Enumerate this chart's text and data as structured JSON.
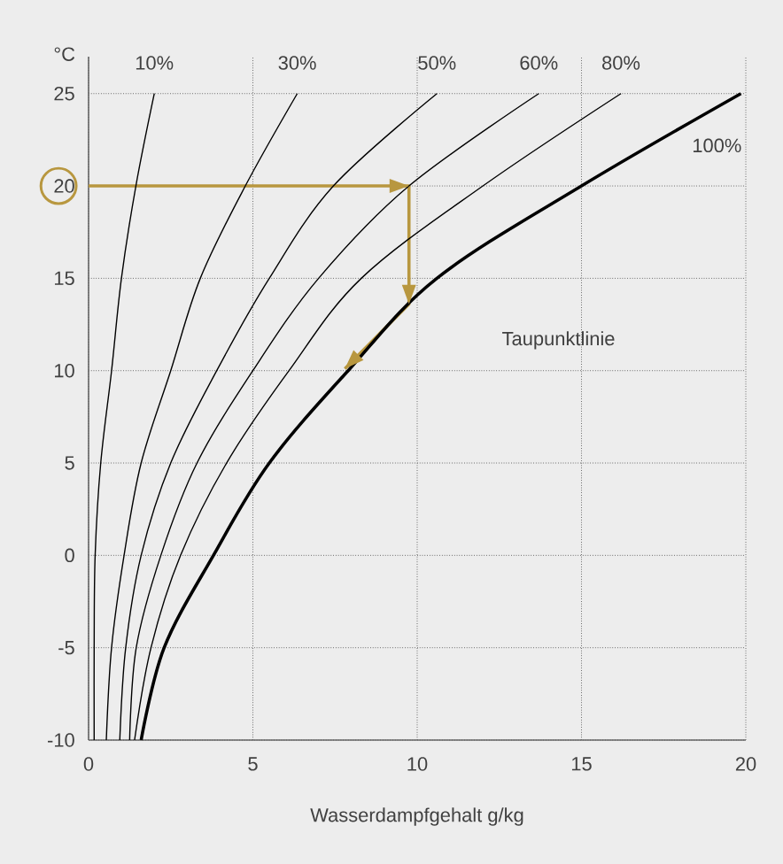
{
  "chart_data": {
    "type": "line",
    "xlabel": "Wasserdampfgehalt g/kg",
    "ylabel": "°C",
    "xlim": [
      0,
      20
    ],
    "ylim": [
      -10,
      27
    ],
    "xticks": [
      0,
      5,
      10,
      15,
      20
    ],
    "yticks": [
      -10,
      -5,
      0,
      5,
      10,
      15,
      20,
      25
    ],
    "grid": true,
    "marker": "none",
    "series": [
      {
        "color": "#b8973f",
        "x": [
          0,
          9.75,
          9.75,
          7.8
        ],
        "values": [
          20,
          20,
          13.6,
          10.1
        ]
      },
      {
        "name": "10%",
        "color": "#000000",
        "x": [
          0.17,
          0.17,
          0.2,
          0.37,
          0.7,
          1.0,
          1.44,
          2.0
        ],
        "values": [
          -10,
          -5,
          0,
          5,
          10,
          15,
          20,
          25
        ]
      },
      {
        "name": "30%",
        "color": "#000000",
        "x": [
          0.54,
          0.7,
          1.08,
          1.6,
          2.5,
          3.4,
          4.77,
          6.35
        ],
        "values": [
          -10,
          -5,
          0,
          5,
          10,
          15,
          20,
          25
        ]
      },
      {
        "name": "50%",
        "color": "#000000",
        "x": [
          0.95,
          1.13,
          1.6,
          2.5,
          3.9,
          5.5,
          7.45,
          10.6
        ],
        "values": [
          -10,
          -5,
          0,
          5,
          10,
          15,
          20,
          25
        ]
      },
      {
        "name": "60%",
        "color": "#000000",
        "x": [
          1.25,
          1.45,
          2.2,
          3.3,
          5.0,
          7.0,
          9.75,
          13.7
        ],
        "values": [
          -10,
          -5,
          0,
          5,
          10,
          15,
          20,
          25
        ]
      },
      {
        "name": "80%",
        "color": "#000000",
        "x": [
          1.4,
          1.9,
          2.8,
          4.2,
          6.1,
          8.3,
          12.0,
          16.2
        ],
        "values": [
          -10,
          -5,
          0,
          5,
          10,
          15,
          20,
          25
        ]
      },
      {
        "name": "100%",
        "color": "#000000",
        "x": [
          1.6,
          2.3,
          3.8,
          5.5,
          7.9,
          10.6,
          15.0,
          19.85
        ],
        "values": [
          -10,
          -5,
          0,
          5,
          10,
          15,
          20,
          25
        ]
      }
    ],
    "annotations": [
      "Taupunktlinie"
    ]
  }
}
